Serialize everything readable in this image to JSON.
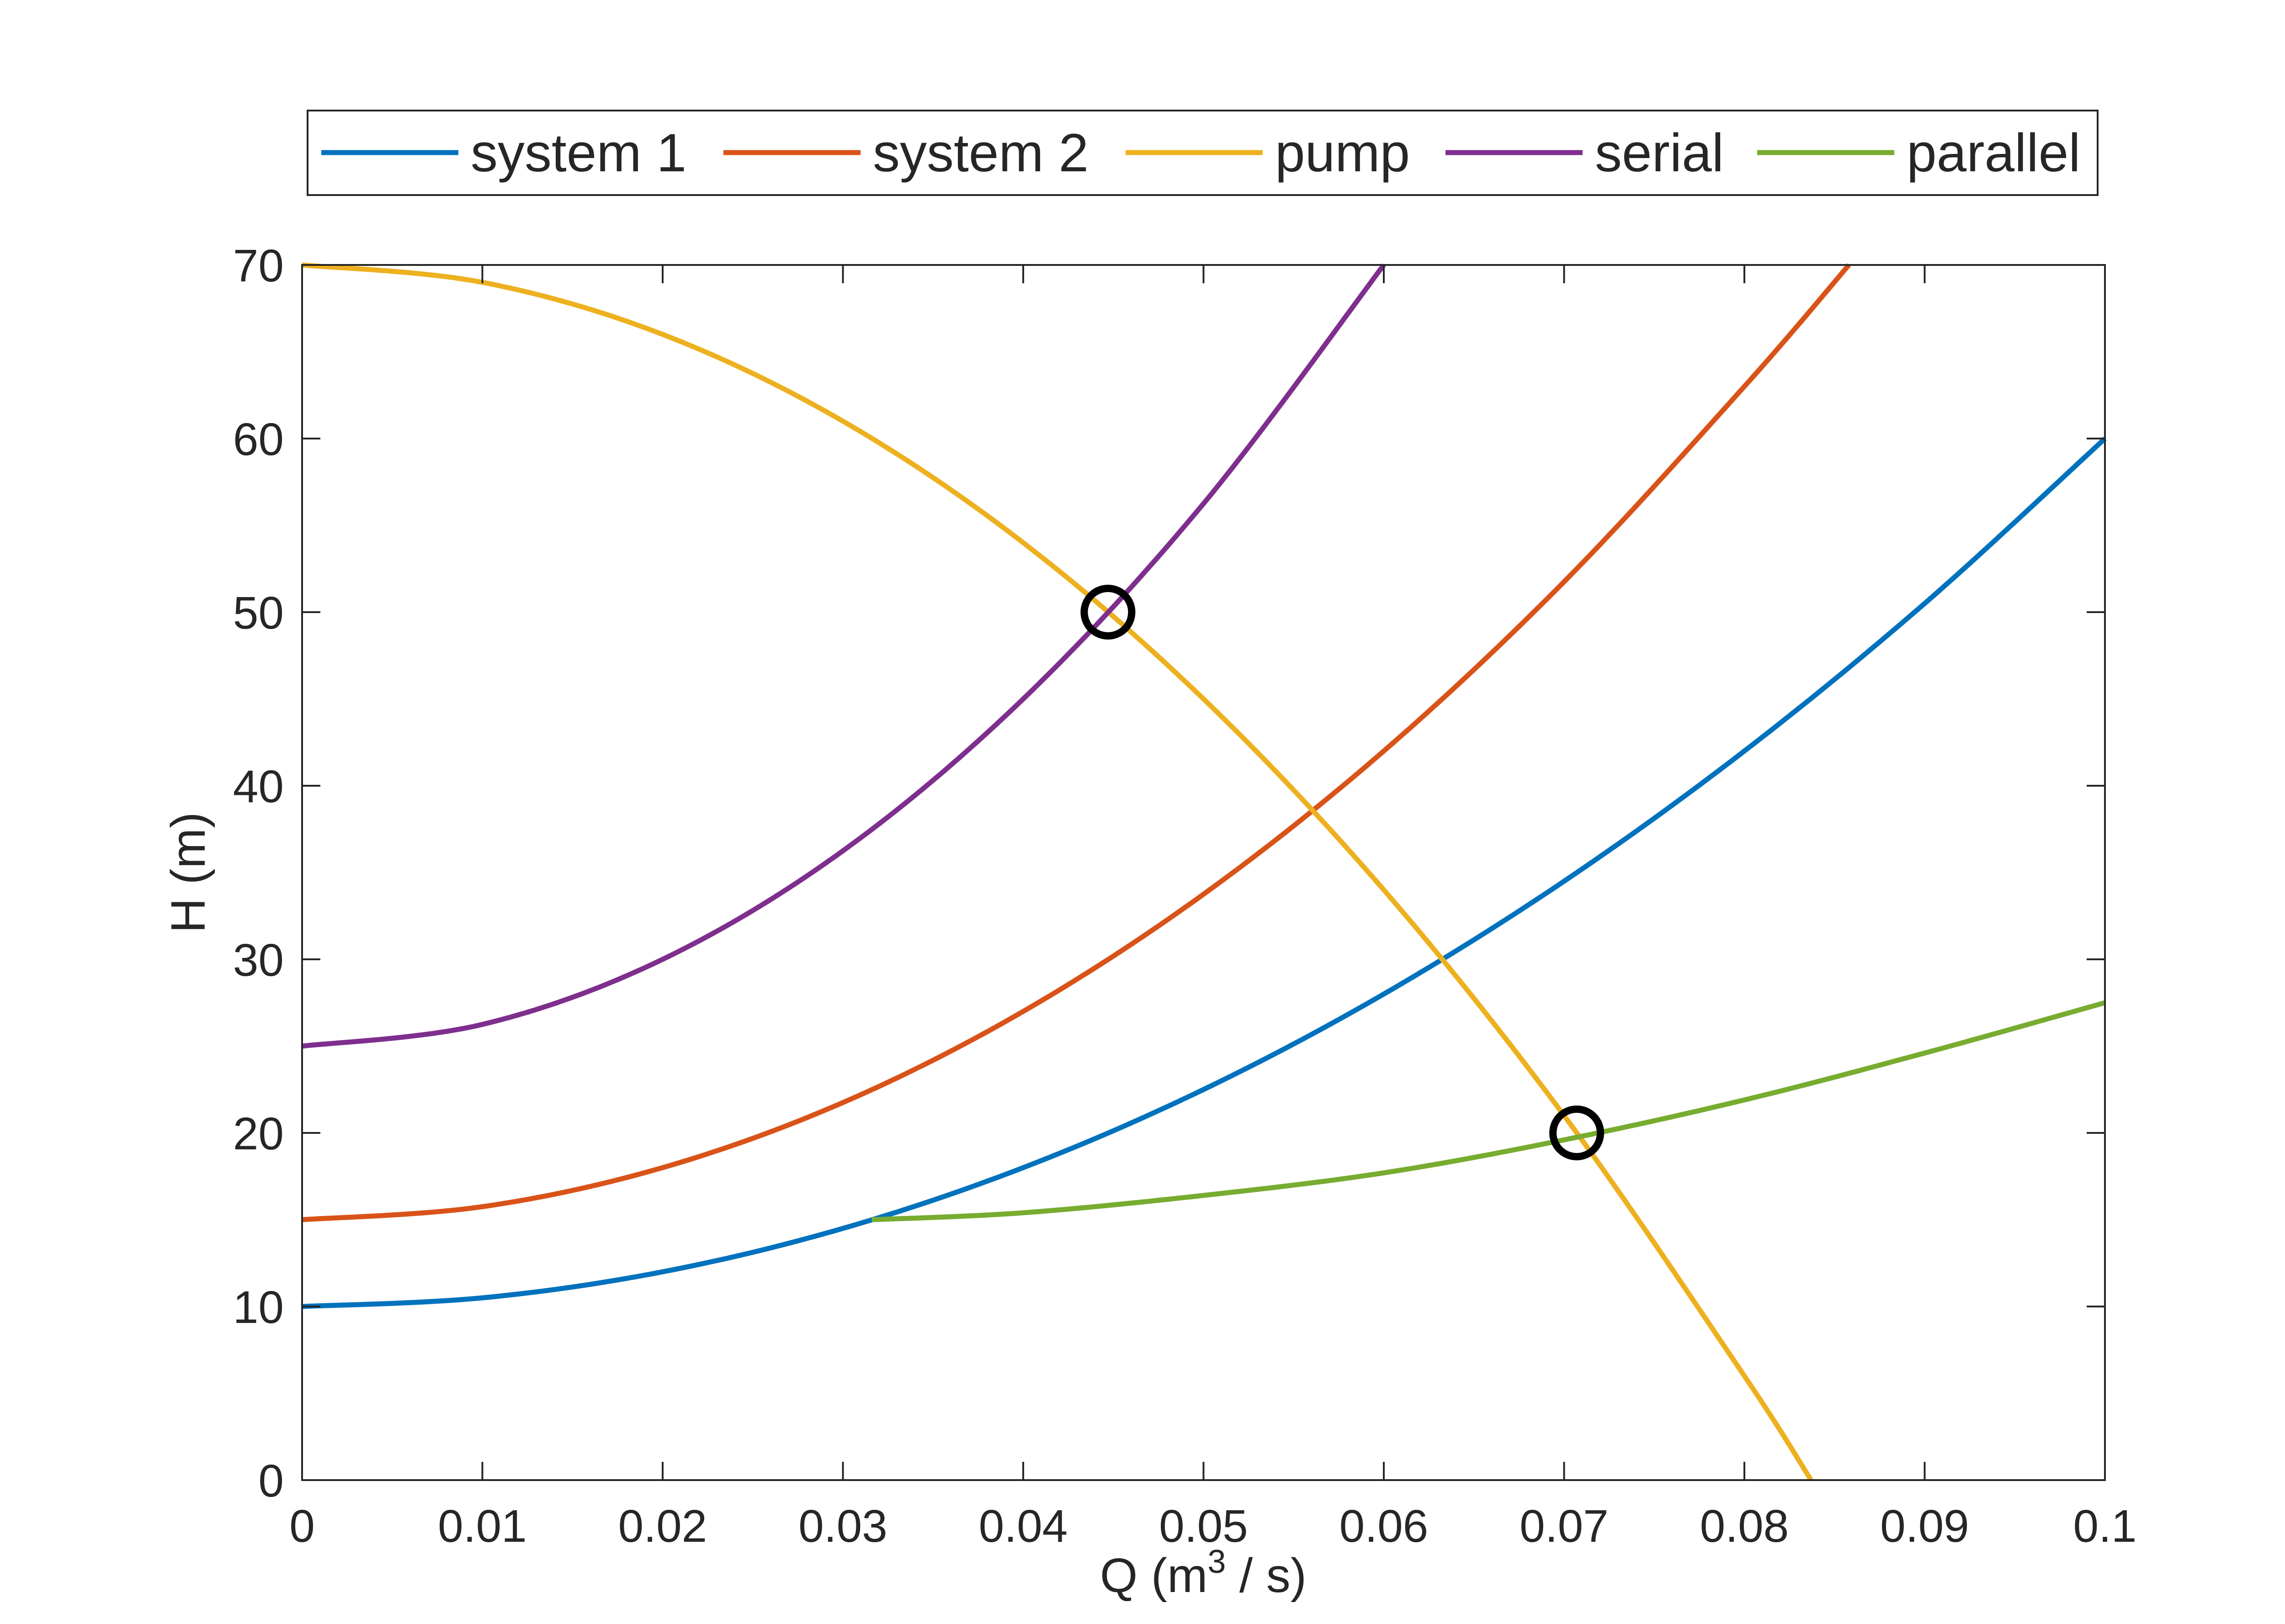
{
  "chart_data": {
    "type": "line",
    "title": "",
    "xlabel": "Q (m",
    "xlabel_sup": "3",
    "xlabel_tail": " / s)",
    "ylabel": "H (m)",
    "xlim": [
      0,
      0.1
    ],
    "ylim": [
      0,
      70
    ],
    "xticks": [
      0,
      0.01,
      0.02,
      0.03,
      0.04,
      0.05,
      0.06,
      0.07,
      0.08,
      0.09,
      0.1
    ],
    "xtick_labels": [
      "0",
      "0.01",
      "0.02",
      "0.03",
      "0.04",
      "0.05",
      "0.06",
      "0.07",
      "0.08",
      "0.09",
      "0.1"
    ],
    "yticks": [
      0,
      10,
      20,
      30,
      40,
      50,
      60,
      70
    ],
    "ytick_labels": [
      "0",
      "10",
      "20",
      "30",
      "40",
      "50",
      "60",
      "70"
    ],
    "grid": false,
    "legend_position": "top-outside-horizontal",
    "series": [
      {
        "name": "system 1",
        "color": "#0072BD",
        "x": [
          0,
          0.01,
          0.02,
          0.03,
          0.04,
          0.05,
          0.06,
          0.07,
          0.08,
          0.09,
          0.1
        ],
        "y": [
          10,
          10.5,
          12,
          14.5,
          18,
          22.5,
          28,
          34.5,
          42,
          50.5,
          60
        ]
      },
      {
        "name": "system 2",
        "color": "#D95319",
        "x": [
          0,
          0.01,
          0.02,
          0.03,
          0.04,
          0.05,
          0.06,
          0.07,
          0.08,
          0.0858
        ],
        "y": [
          15,
          15.75,
          18,
          21.75,
          27,
          33.75,
          42,
          51.75,
          63,
          70
        ]
      },
      {
        "name": "pump",
        "color": "#EDB120",
        "x": [
          0,
          0.01,
          0.02,
          0.03,
          0.04,
          0.05,
          0.06,
          0.07,
          0.08,
          0.0837
        ],
        "y": [
          70,
          69,
          66,
          61,
          54,
          45,
          34,
          21,
          6,
          0
        ]
      },
      {
        "name": "serial",
        "color": "#7E2F8E",
        "x": [
          0,
          0.01,
          0.02,
          0.03,
          0.04,
          0.05,
          0.06
        ],
        "y": [
          25,
          26.25,
          30,
          36.25,
          45,
          56.25,
          70
        ]
      },
      {
        "name": "parallel",
        "color": "#77AC30",
        "x": [
          0.0316,
          0.04,
          0.05,
          0.06,
          0.07,
          0.08,
          0.09,
          0.1
        ],
        "y": [
          15,
          15.4,
          16.4,
          17.7,
          19.6,
          21.9,
          24.6,
          27.5
        ]
      }
    ],
    "markers": [
      {
        "shape": "circle",
        "color": "#000000",
        "x": 0.0447,
        "y": 50
      },
      {
        "shape": "circle",
        "color": "#000000",
        "x": 0.0707,
        "y": 20
      }
    ]
  }
}
